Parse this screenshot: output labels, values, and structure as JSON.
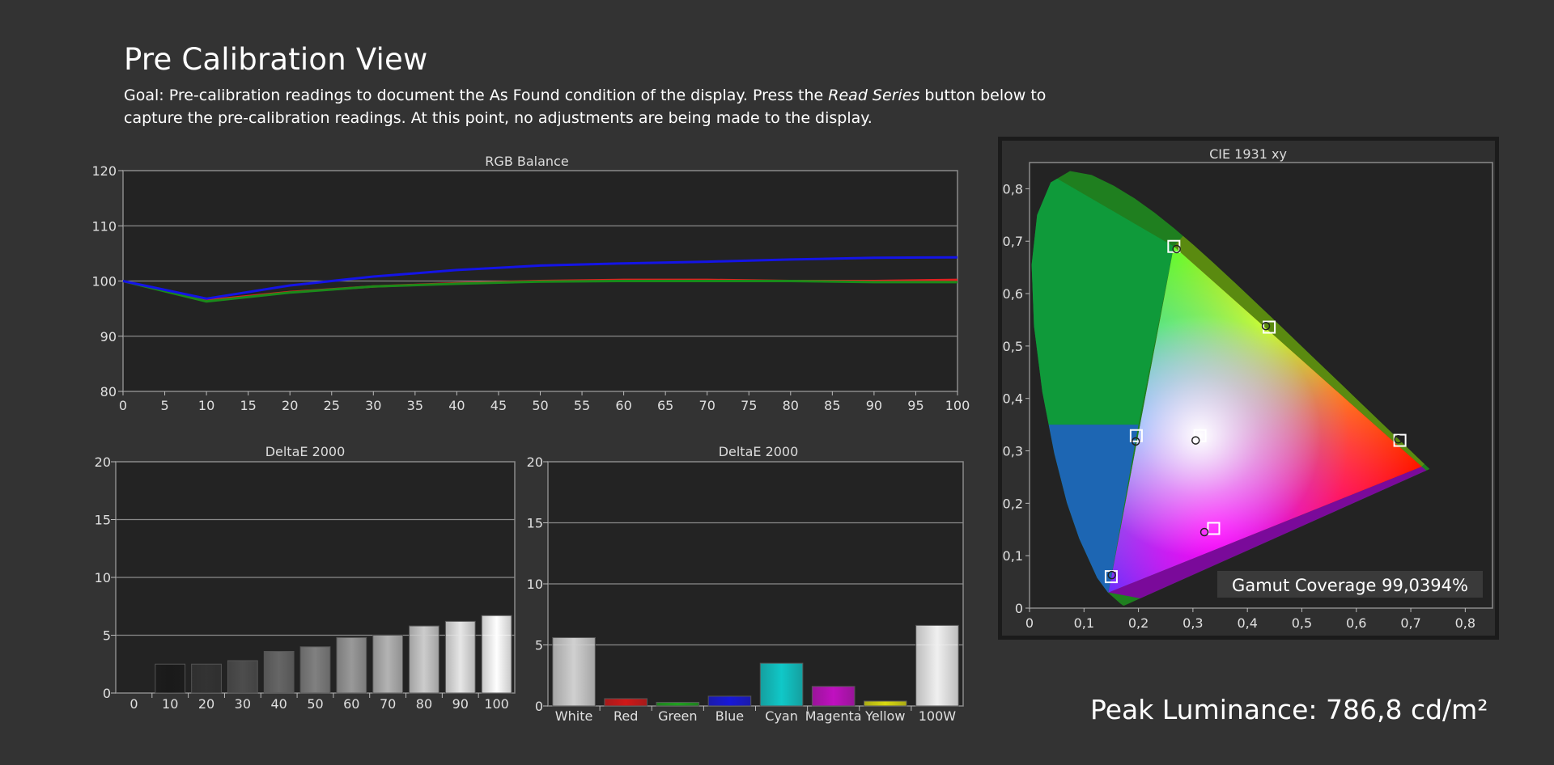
{
  "header": {
    "title": "Pre Calibration View",
    "goal_prefix": "Goal: Pre-calibration readings to document the As Found condition of the display. Press the ",
    "goal_emphasis": "Read Series",
    "goal_suffix": " button below to capture the pre-calibration readings. At this point, no adjustments are being made to the display."
  },
  "peak_luminance": "Peak Luminance: 786,8 cd/m²",
  "colors": {
    "background": "#333333",
    "plot_background": "#232323",
    "red": "#e02020",
    "green": "#1a8a1a",
    "blue": "#1414e6"
  },
  "chart_data": [
    {
      "id": "rgb-balance",
      "type": "line",
      "title": "RGB Balance",
      "x": [
        0,
        10,
        20,
        30,
        40,
        50,
        60,
        70,
        80,
        90,
        100
      ],
      "series": [
        {
          "color": "#e02020",
          "values": [
            100,
            96.5,
            98,
            99,
            99.6,
            100,
            100.2,
            100.2,
            100,
            100,
            100.2
          ]
        },
        {
          "color": "#1a8a1a",
          "values": [
            100,
            96.3,
            97.9,
            99,
            99.5,
            99.9,
            100,
            100,
            100,
            99.8,
            99.8
          ]
        },
        {
          "color": "#1414e6",
          "values": [
            100,
            96.8,
            99.2,
            100.8,
            102,
            102.8,
            103.2,
            103.5,
            103.9,
            104.2,
            104.3
          ]
        }
      ],
      "xlim": [
        0,
        100
      ],
      "ylim": [
        80,
        120
      ],
      "xticks": [
        0,
        5,
        10,
        15,
        20,
        25,
        30,
        35,
        40,
        45,
        50,
        55,
        60,
        65,
        70,
        75,
        80,
        85,
        90,
        95,
        100
      ],
      "yticks": [
        80,
        90,
        100,
        110,
        120
      ],
      "grid": true
    },
    {
      "id": "deltae-grayscale",
      "type": "bar",
      "title": "DeltaE 2000",
      "categories": [
        "0",
        "10",
        "20",
        "30",
        "40",
        "50",
        "60",
        "70",
        "80",
        "90",
        "100"
      ],
      "values": [
        0,
        2.5,
        2.5,
        2.8,
        3.6,
        4.0,
        4.8,
        5.0,
        5.8,
        6.2,
        6.7
      ],
      "bar_colors": [
        "#000000",
        "#1a1a1a",
        "#333333",
        "#4d4d4d",
        "#666666",
        "#808080",
        "#999999",
        "#b3b3b3",
        "#cccccc",
        "#e6e6e6",
        "#ffffff"
      ],
      "ylim": [
        0,
        20
      ],
      "yticks": [
        0,
        5,
        10,
        15,
        20
      ],
      "grid": true
    },
    {
      "id": "deltae-colors",
      "type": "bar",
      "title": "DeltaE 2000",
      "categories": [
        "White",
        "Red",
        "Green",
        "Blue",
        "Cyan",
        "Magenta",
        "Yellow",
        "100W"
      ],
      "values": [
        5.6,
        0.6,
        0.3,
        0.8,
        3.5,
        1.6,
        0.4,
        6.6
      ],
      "bar_colors": [
        "#d0d0d0",
        "#d01818",
        "#20a020",
        "#1818d8",
        "#10c8c8",
        "#c010c0",
        "#d8d810",
        "#f0f0f0"
      ],
      "ylim": [
        0,
        20
      ],
      "yticks": [
        0,
        5,
        10,
        15,
        20
      ],
      "grid": true
    },
    {
      "id": "cie-1931",
      "type": "scatter",
      "title": "CIE 1931 xy",
      "xlim": [
        0,
        0.85
      ],
      "ylim": [
        0,
        0.85
      ],
      "xticks": [
        "0",
        "0,1",
        "0,2",
        "0,3",
        "0,4",
        "0,5",
        "0,6",
        "0,7",
        "0,8"
      ],
      "yticks": [
        "0",
        "0,1",
        "0,2",
        "0,3",
        "0,4",
        "0,5",
        "0,6",
        "0,7",
        "0,8"
      ],
      "gamut_coverage": "Gamut Coverage 99,0394%",
      "targets": [
        {
          "name": "Red",
          "x": 0.68,
          "y": 0.32
        },
        {
          "name": "Green",
          "x": 0.265,
          "y": 0.69
        },
        {
          "name": "Blue",
          "x": 0.15,
          "y": 0.06
        },
        {
          "name": "Cyan",
          "x": 0.196,
          "y": 0.329
        },
        {
          "name": "Magenta",
          "x": 0.338,
          "y": 0.152
        },
        {
          "name": "Yellow",
          "x": 0.44,
          "y": 0.536
        },
        {
          "name": "White",
          "x": 0.313,
          "y": 0.329
        }
      ],
      "measured": [
        {
          "name": "Red",
          "x": 0.677,
          "y": 0.322
        },
        {
          "name": "Green",
          "x": 0.27,
          "y": 0.685
        },
        {
          "name": "Blue",
          "x": 0.151,
          "y": 0.063
        },
        {
          "name": "Cyan",
          "x": 0.195,
          "y": 0.318
        },
        {
          "name": "Magenta",
          "x": 0.321,
          "y": 0.145
        },
        {
          "name": "Yellow",
          "x": 0.434,
          "y": 0.538
        },
        {
          "name": "White",
          "x": 0.305,
          "y": 0.32
        }
      ],
      "gamut_triangle": [
        [
          0.72,
          0.27
        ],
        [
          0.265,
          0.69
        ],
        [
          0.145,
          0.03
        ]
      ]
    }
  ]
}
